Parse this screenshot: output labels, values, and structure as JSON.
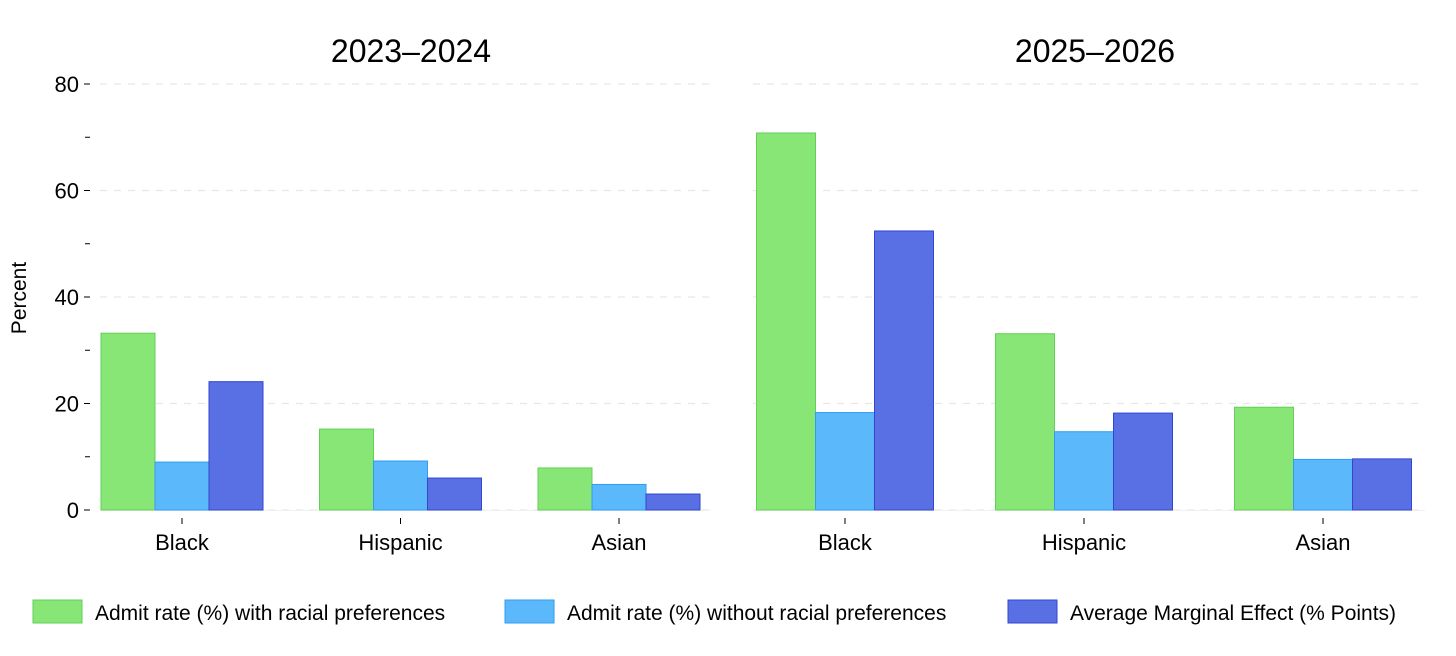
{
  "chart_data": {
    "type": "bar",
    "ylabel": "Percent",
    "ylim": [
      0,
      80
    ],
    "yticks_major": [
      0,
      20,
      40,
      60,
      80
    ],
    "yticks_minor": [
      10,
      30,
      50,
      70
    ],
    "grid": true,
    "legend_position": "bottom",
    "series_colors": [
      "#88e677",
      "#5bb8fb",
      "#5870e4"
    ],
    "series_stroke": [
      "#63cf55",
      "#2f9ef0",
      "#3346d0"
    ],
    "panels": [
      {
        "title": "2023–2024",
        "categories": [
          "Black",
          "Hispanic",
          "Asian"
        ],
        "series": [
          {
            "name": "Admit rate (%) with racial preferences",
            "values": [
              33.2,
              15.2,
              7.9
            ]
          },
          {
            "name": "Admit rate (%) without racial preferences",
            "values": [
              9.0,
              9.2,
              4.8
            ]
          },
          {
            "name": "Average Marginal Effect (% Points)",
            "values": [
              24.1,
              6.0,
              3.0
            ]
          }
        ]
      },
      {
        "title": "2025–2026",
        "categories": [
          "Black",
          "Hispanic",
          "Asian"
        ],
        "series": [
          {
            "name": "Admit rate (%) with racial preferences",
            "values": [
              70.8,
              33.1,
              19.3
            ]
          },
          {
            "name": "Admit rate (%) without racial preferences",
            "values": [
              18.3,
              14.7,
              9.5
            ]
          },
          {
            "name": "Average Marginal Effect (% Points)",
            "values": [
              52.4,
              18.2,
              9.6
            ]
          }
        ]
      }
    ]
  }
}
